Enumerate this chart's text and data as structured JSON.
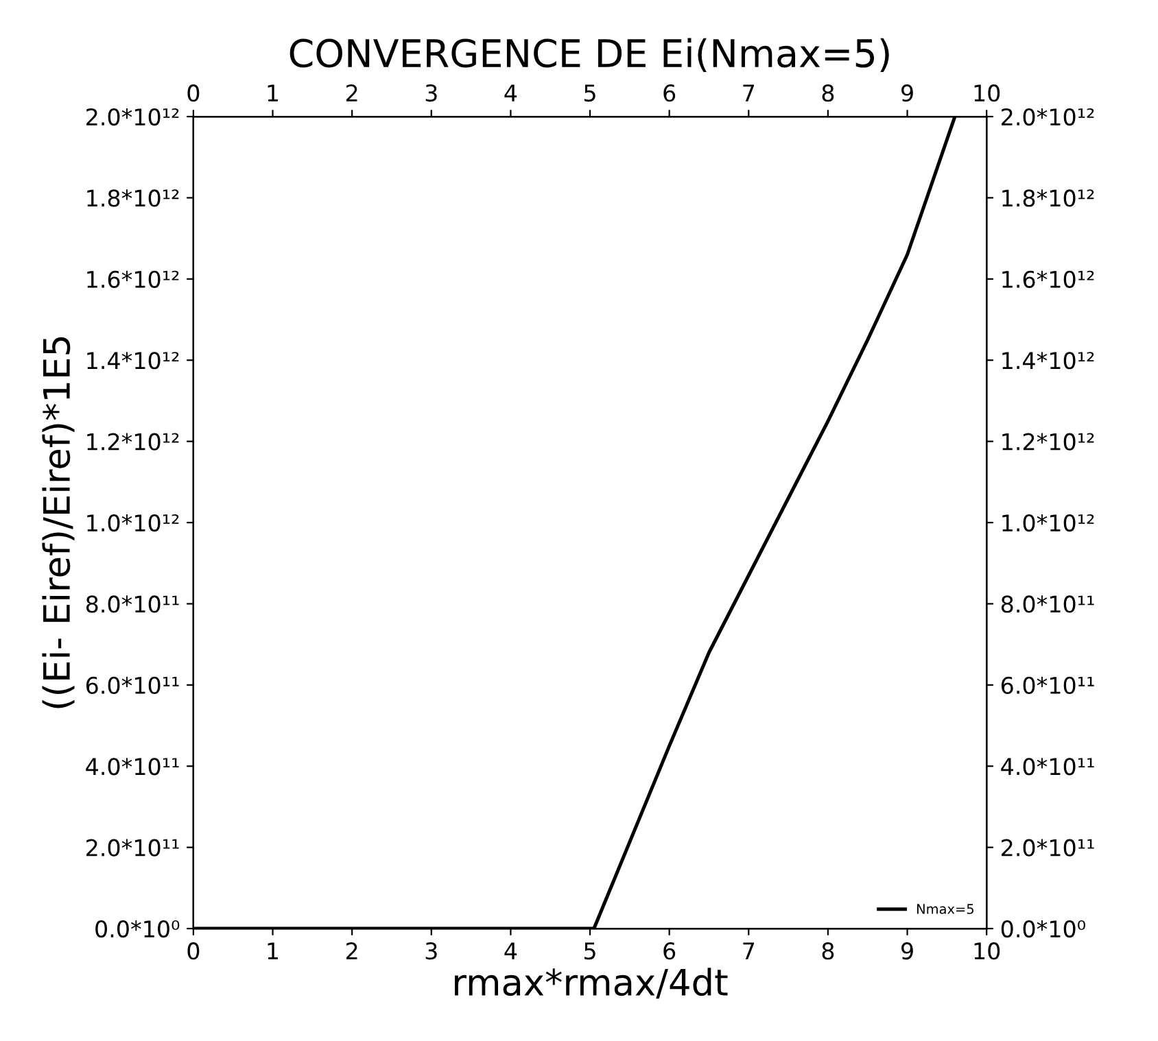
{
  "chart_data": {
    "type": "line",
    "title": "CONVERGENCE DE Ei(Nmax=5)",
    "xlabel": "rmax*rmax/4dt",
    "ylabel": "((Ei- Eiref)/Eiref)*1E5",
    "series": [
      {
        "name": "Nmax=5",
        "color": "#000000",
        "x": [
          0,
          1,
          2,
          3,
          4,
          5.05,
          6,
          6.5,
          7,
          7.5,
          8,
          8.5,
          9,
          9.6
        ],
        "values": [
          0,
          0,
          0,
          0,
          0,
          0,
          450000000000,
          680000000000,
          870000000000,
          1060000000000,
          1250000000000,
          1450000000000,
          1660000000000,
          2000000000000
        ]
      }
    ],
    "xlim": [
      0,
      10
    ],
    "xticks": [
      0,
      1,
      2,
      3,
      4,
      5,
      6,
      7,
      8,
      9,
      10
    ],
    "x2lim": [
      0,
      10
    ],
    "x2ticks": [
      0,
      1,
      2,
      3,
      4,
      5,
      6,
      7,
      8,
      9,
      10
    ],
    "ylim": [
      0,
      2000000000000
    ],
    "yticks": [
      {
        "value": 0,
        "label": "0.0*10⁰"
      },
      {
        "value": 200000000000,
        "label": "2.0*10¹¹"
      },
      {
        "value": 400000000000,
        "label": "4.0*10¹¹"
      },
      {
        "value": 600000000000,
        "label": "6.0*10¹¹"
      },
      {
        "value": 800000000000,
        "label": "8.0*10¹¹"
      },
      {
        "value": 1000000000000,
        "label": "1.0*10¹²"
      },
      {
        "value": 1200000000000,
        "label": "1.2*10¹²"
      },
      {
        "value": 1400000000000,
        "label": "1.4*10¹²"
      },
      {
        "value": 1600000000000,
        "label": "1.6*10¹²"
      },
      {
        "value": 1800000000000,
        "label": "1.8*10¹²"
      },
      {
        "value": 2000000000000,
        "label": "2.0*10¹²"
      }
    ],
    "y2lim": [
      0,
      2000000000000
    ],
    "y2ticks": [
      {
        "value": 0,
        "label": "0.0*10⁰"
      },
      {
        "value": 200000000000,
        "label": "2.0*10¹¹"
      },
      {
        "value": 400000000000,
        "label": "4.0*10¹¹"
      },
      {
        "value": 600000000000,
        "label": "6.0*10¹¹"
      },
      {
        "value": 800000000000,
        "label": "8.0*10¹¹"
      },
      {
        "value": 1000000000000,
        "label": "1.0*10¹²"
      },
      {
        "value": 1200000000000,
        "label": "1.2*10¹²"
      },
      {
        "value": 1400000000000,
        "label": "1.4*10¹²"
      },
      {
        "value": 1600000000000,
        "label": "1.6*10¹²"
      },
      {
        "value": 1800000000000,
        "label": "1.8*10¹²"
      },
      {
        "value": 2000000000000,
        "label": "2.0*10¹²"
      }
    ],
    "grid": false,
    "legend": "bottom right",
    "marker": "none",
    "line_style": "solid"
  }
}
